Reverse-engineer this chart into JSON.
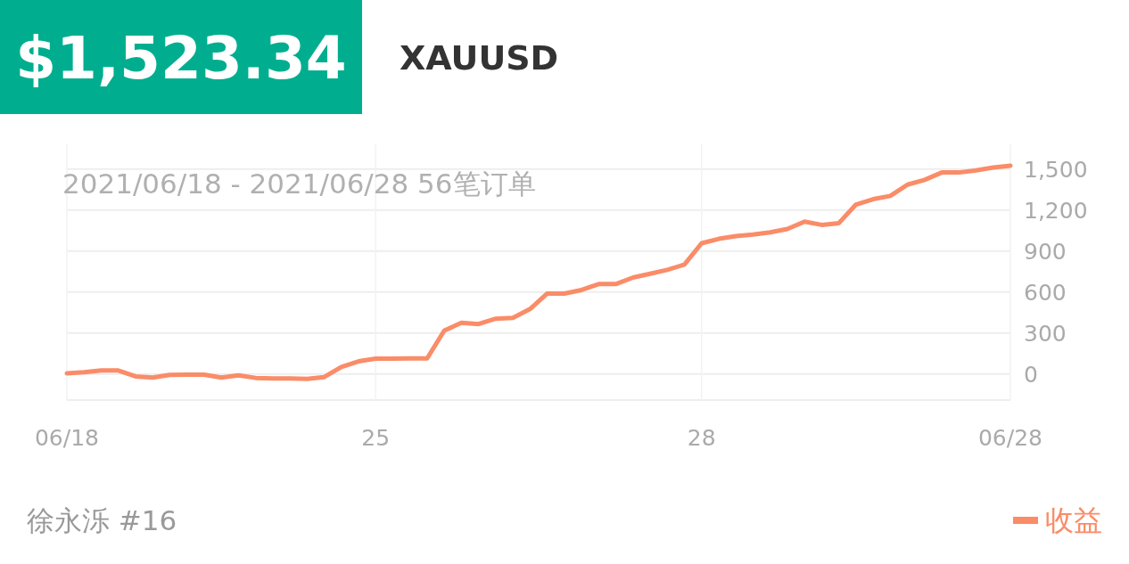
{
  "chart_data": {
    "type": "line",
    "title": "$1,523.34",
    "subtitle": "XAUUSD",
    "annotations": [
      "2021/06/18 - 2021/06/28  56笔订单",
      "徐永泺 #16"
    ],
    "categories": [
      "06/18",
      null,
      null,
      null,
      null,
      null,
      null,
      null,
      null,
      null,
      null,
      null,
      null,
      null,
      null,
      null,
      null,
      null,
      "25",
      null,
      null,
      null,
      null,
      null,
      null,
      null,
      null,
      null,
      null,
      null,
      null,
      null,
      null,
      null,
      null,
      null,
      null,
      "28",
      null,
      null,
      null,
      null,
      null,
      null,
      null,
      null,
      null,
      null,
      null,
      null,
      null,
      null,
      null,
      null,
      null,
      "06/28"
    ],
    "series": [
      {
        "name": "收益",
        "color": "#fa8c68",
        "values": [
          5,
          13,
          26,
          26,
          -17,
          -26,
          -6,
          -4,
          -4,
          -26,
          -9,
          -28,
          -32,
          -32,
          -35,
          -22,
          52,
          93,
          113,
          113,
          115,
          115,
          318,
          375,
          366,
          405,
          411,
          476,
          589,
          589,
          615,
          658,
          658,
          706,
          734,
          762,
          801,
          957,
          989,
          1009,
          1020,
          1037,
          1061,
          1115,
          1091,
          1104,
          1240,
          1279,
          1303,
          1385,
          1420,
          1474,
          1474,
          1489,
          1511,
          1523
        ]
      }
    ],
    "ylim": [
      -190,
      1680
    ],
    "yticks": [
      0,
      300,
      600,
      900,
      {
        "value": 1200,
        "label": "1,200"
      },
      {
        "value": 1500,
        "label": "1,500"
      }
    ],
    "grid": true,
    "legend": "bottom right",
    "marker": "none",
    "line_style": "solid"
  }
}
